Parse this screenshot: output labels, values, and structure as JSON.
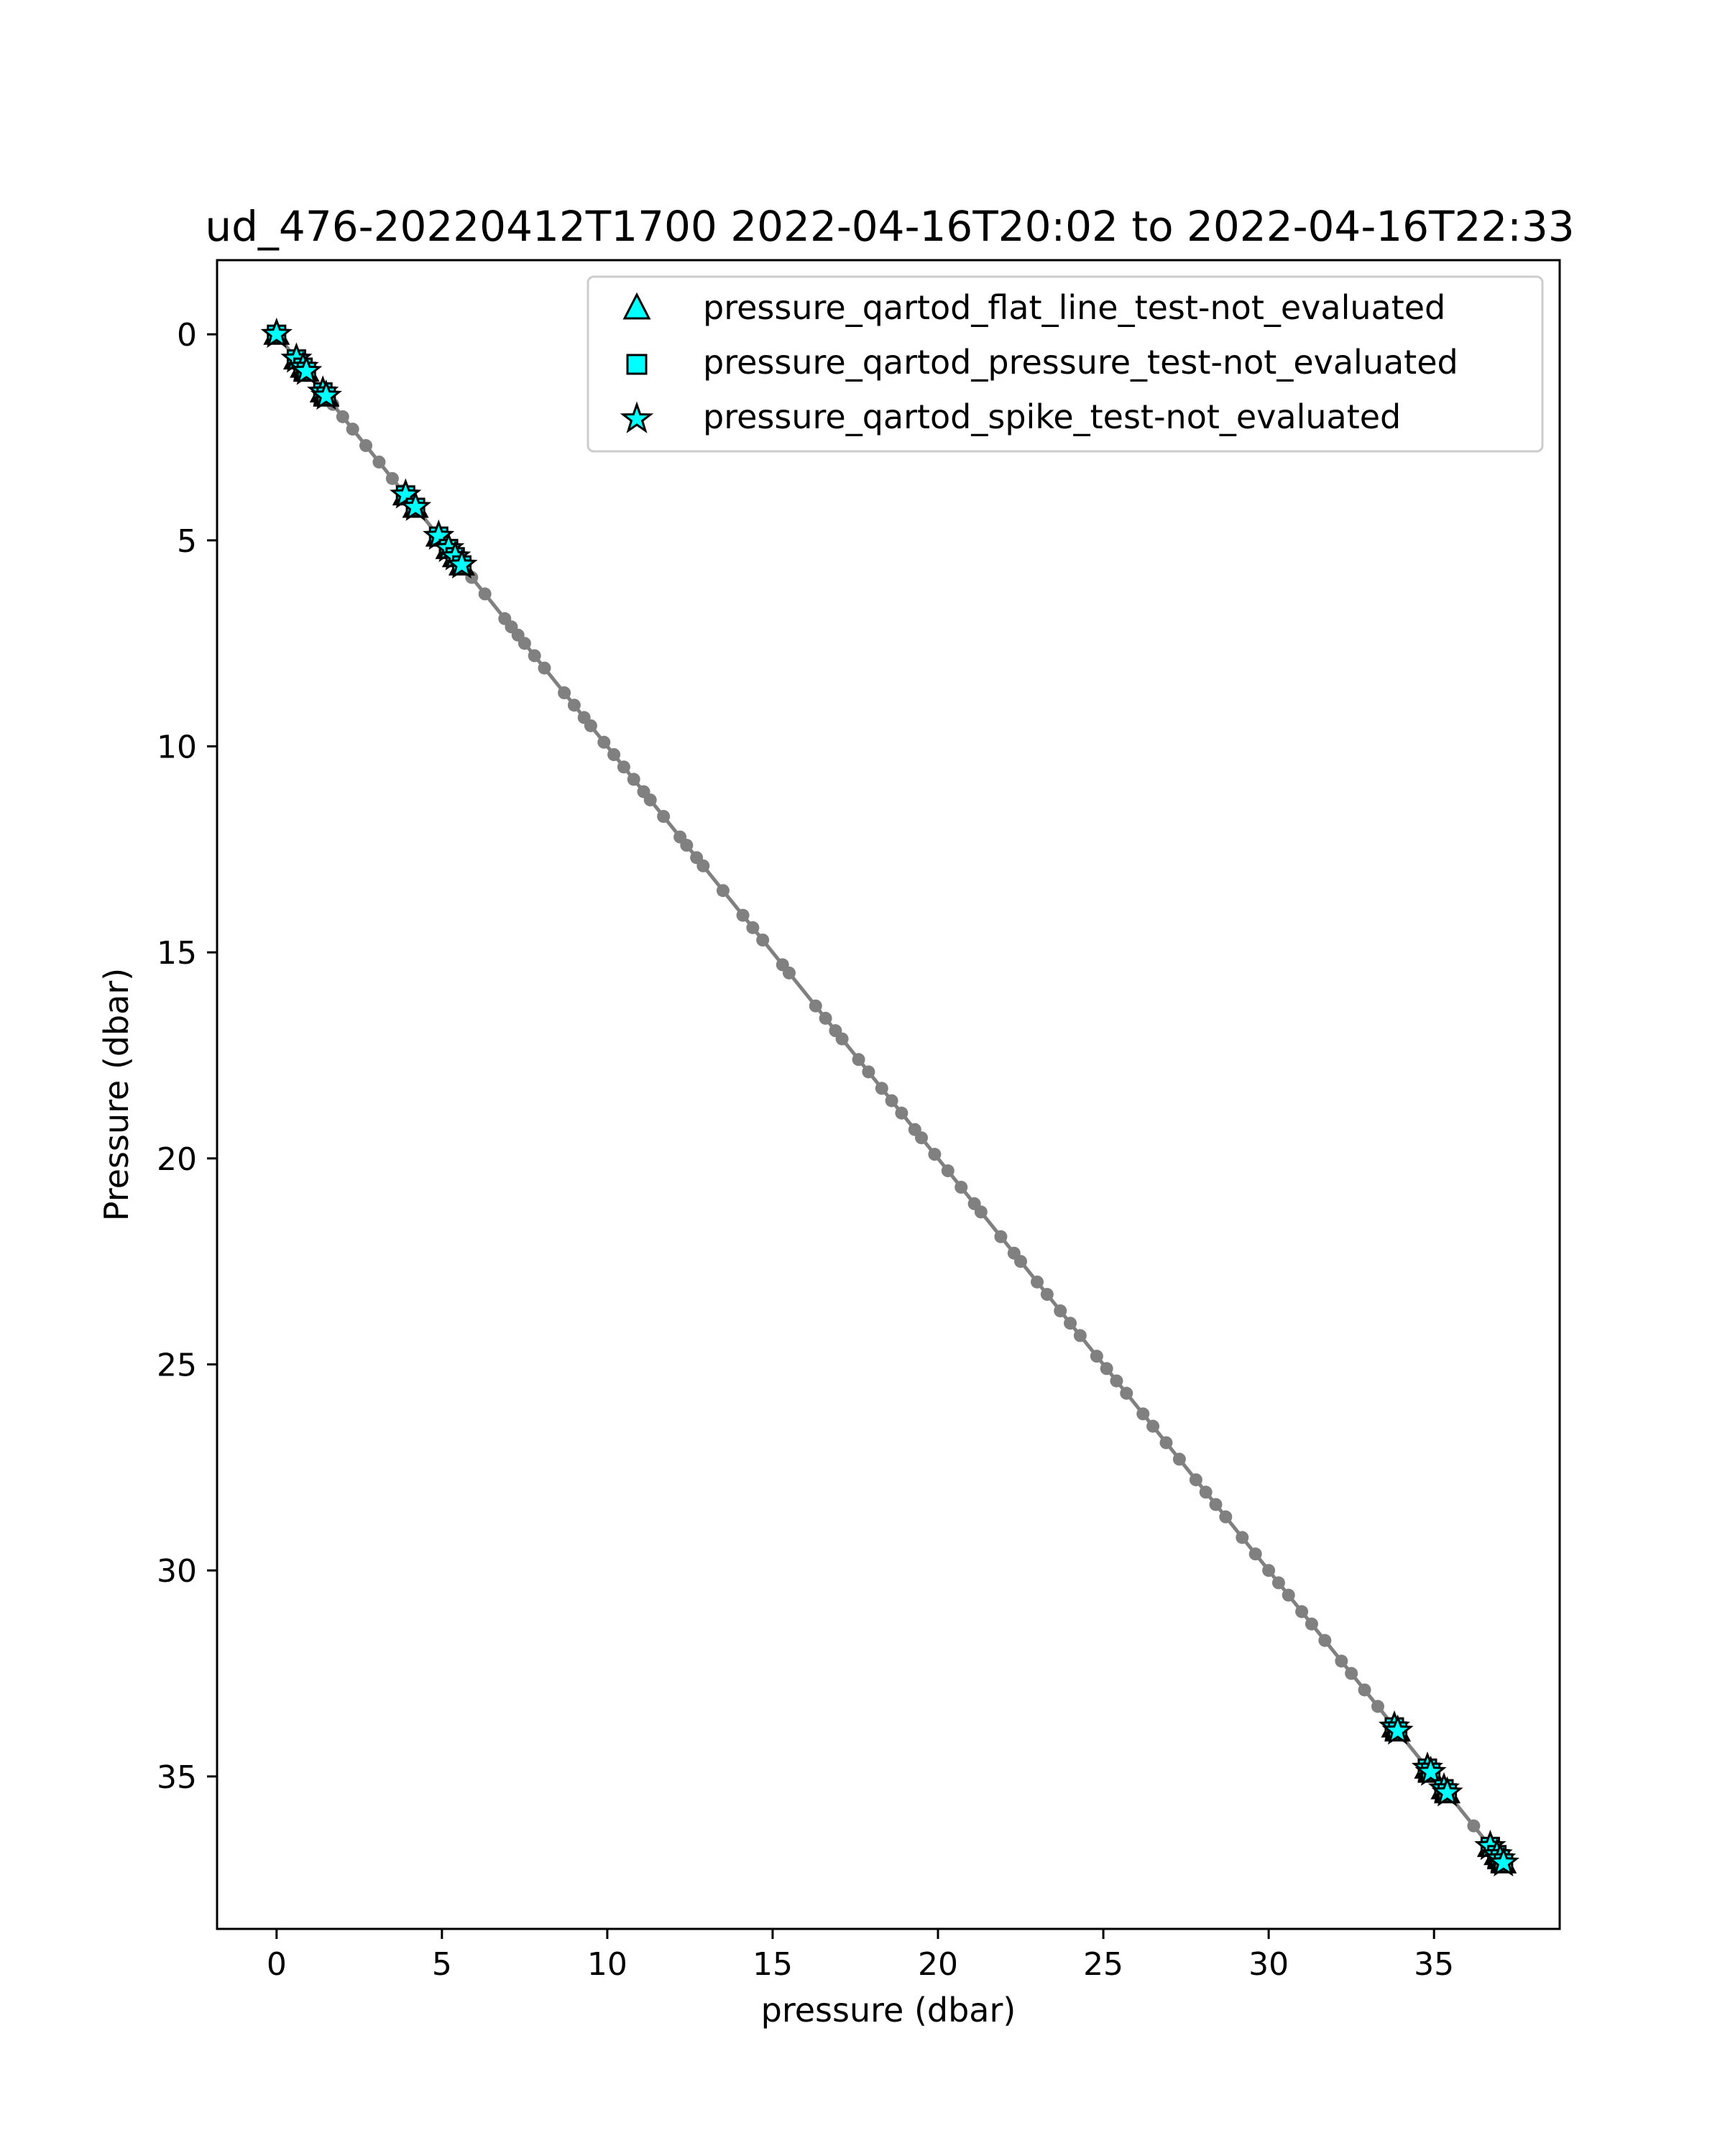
{
  "chart_data": {
    "type": "scatter",
    "title": "ud_476-20220412T1700 2022-04-16T20:02 to 2022-04-16T22:33",
    "xlabel": "pressure (dbar)",
    "ylabel": "Pressure (dbar)",
    "xlim": [
      -1.8,
      38.8
    ],
    "ylim": [
      38.7,
      -1.8
    ],
    "y_inverted": true,
    "xticks": [
      0,
      5,
      10,
      15,
      20,
      25,
      30,
      35
    ],
    "yticks": [
      0,
      5,
      10,
      15,
      20,
      25,
      30,
      35
    ],
    "grid": false,
    "legend_position": "upper right",
    "line": {
      "name": "",
      "color": "#808080",
      "x": [
        0.0,
        37.0
      ],
      "y": [
        0.0,
        37.0
      ]
    },
    "gray_points": [
      1.7,
      2.0,
      2.3,
      2.7,
      3.1,
      3.5,
      3.8,
      5.9,
      6.3,
      6.9,
      7.1,
      7.3,
      7.5,
      7.8,
      8.1,
      8.7,
      9.0,
      9.3,
      9.5,
      9.9,
      10.2,
      10.5,
      10.8,
      11.1,
      11.3,
      11.7,
      12.2,
      12.4,
      12.7,
      12.9,
      13.5,
      14.1,
      14.4,
      14.7,
      15.3,
      15.5,
      16.3,
      16.6,
      16.9,
      17.1,
      17.6,
      17.9,
      18.3,
      18.6,
      18.9,
      19.3,
      19.5,
      19.9,
      20.3,
      20.7,
      21.1,
      21.3,
      21.9,
      22.3,
      22.5,
      23.0,
      23.3,
      23.7,
      24.0,
      24.3,
      24.8,
      25.1,
      25.4,
      25.7,
      26.2,
      26.5,
      26.9,
      27.3,
      27.8,
      28.1,
      28.4,
      28.7,
      29.2,
      29.6,
      30.0,
      30.3,
      30.6,
      31.0,
      31.3,
      31.7,
      32.2,
      32.5,
      32.9,
      33.3,
      36.2
    ],
    "flagged_points": [
      0.0,
      0.6,
      0.8,
      0.9,
      1.4,
      1.5,
      3.9,
      4.2,
      4.9,
      5.2,
      5.4,
      5.6,
      33.8,
      33.9,
      34.8,
      34.9,
      35.3,
      35.4,
      36.7,
      36.9,
      37.0,
      37.1
    ],
    "series": [
      {
        "name": "pressure_qartod_flat_line_test-not_evaluated",
        "marker": "triangle",
        "color": "#00FFFF"
      },
      {
        "name": "pressure_qartod_pressure_test-not_evaluated",
        "marker": "square",
        "color": "#00FFFF"
      },
      {
        "name": "pressure_qartod_spike_test-not_evaluated",
        "marker": "star",
        "color": "#00FFFF"
      }
    ]
  }
}
